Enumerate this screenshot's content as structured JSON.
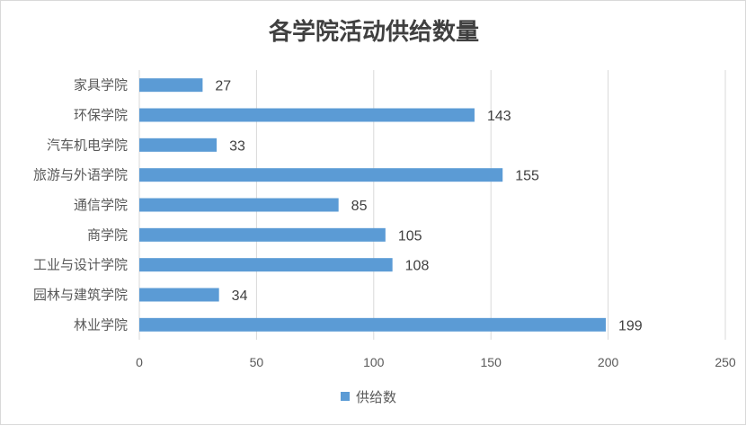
{
  "chart_data": {
    "type": "bar",
    "orientation": "horizontal",
    "title": "各学院活动供给数量",
    "categories": [
      "家具学院",
      "环保学院",
      "汽车机电学院",
      "旅游与外语学院",
      "通信学院",
      "商学院",
      "工业与设计学院",
      "园林与建筑学院",
      "林业学院"
    ],
    "series": [
      {
        "name": "供给数",
        "values": [
          27,
          143,
          33,
          155,
          85,
          105,
          108,
          34,
          199
        ],
        "color": "#5b9bd5"
      }
    ],
    "xlim": [
      0,
      250
    ],
    "xticks": [
      0,
      50,
      100,
      150,
      200,
      250
    ],
    "xlabel": "",
    "ylabel": "",
    "grid": "vertical",
    "legend_position": "bottom",
    "data_labels": true
  }
}
